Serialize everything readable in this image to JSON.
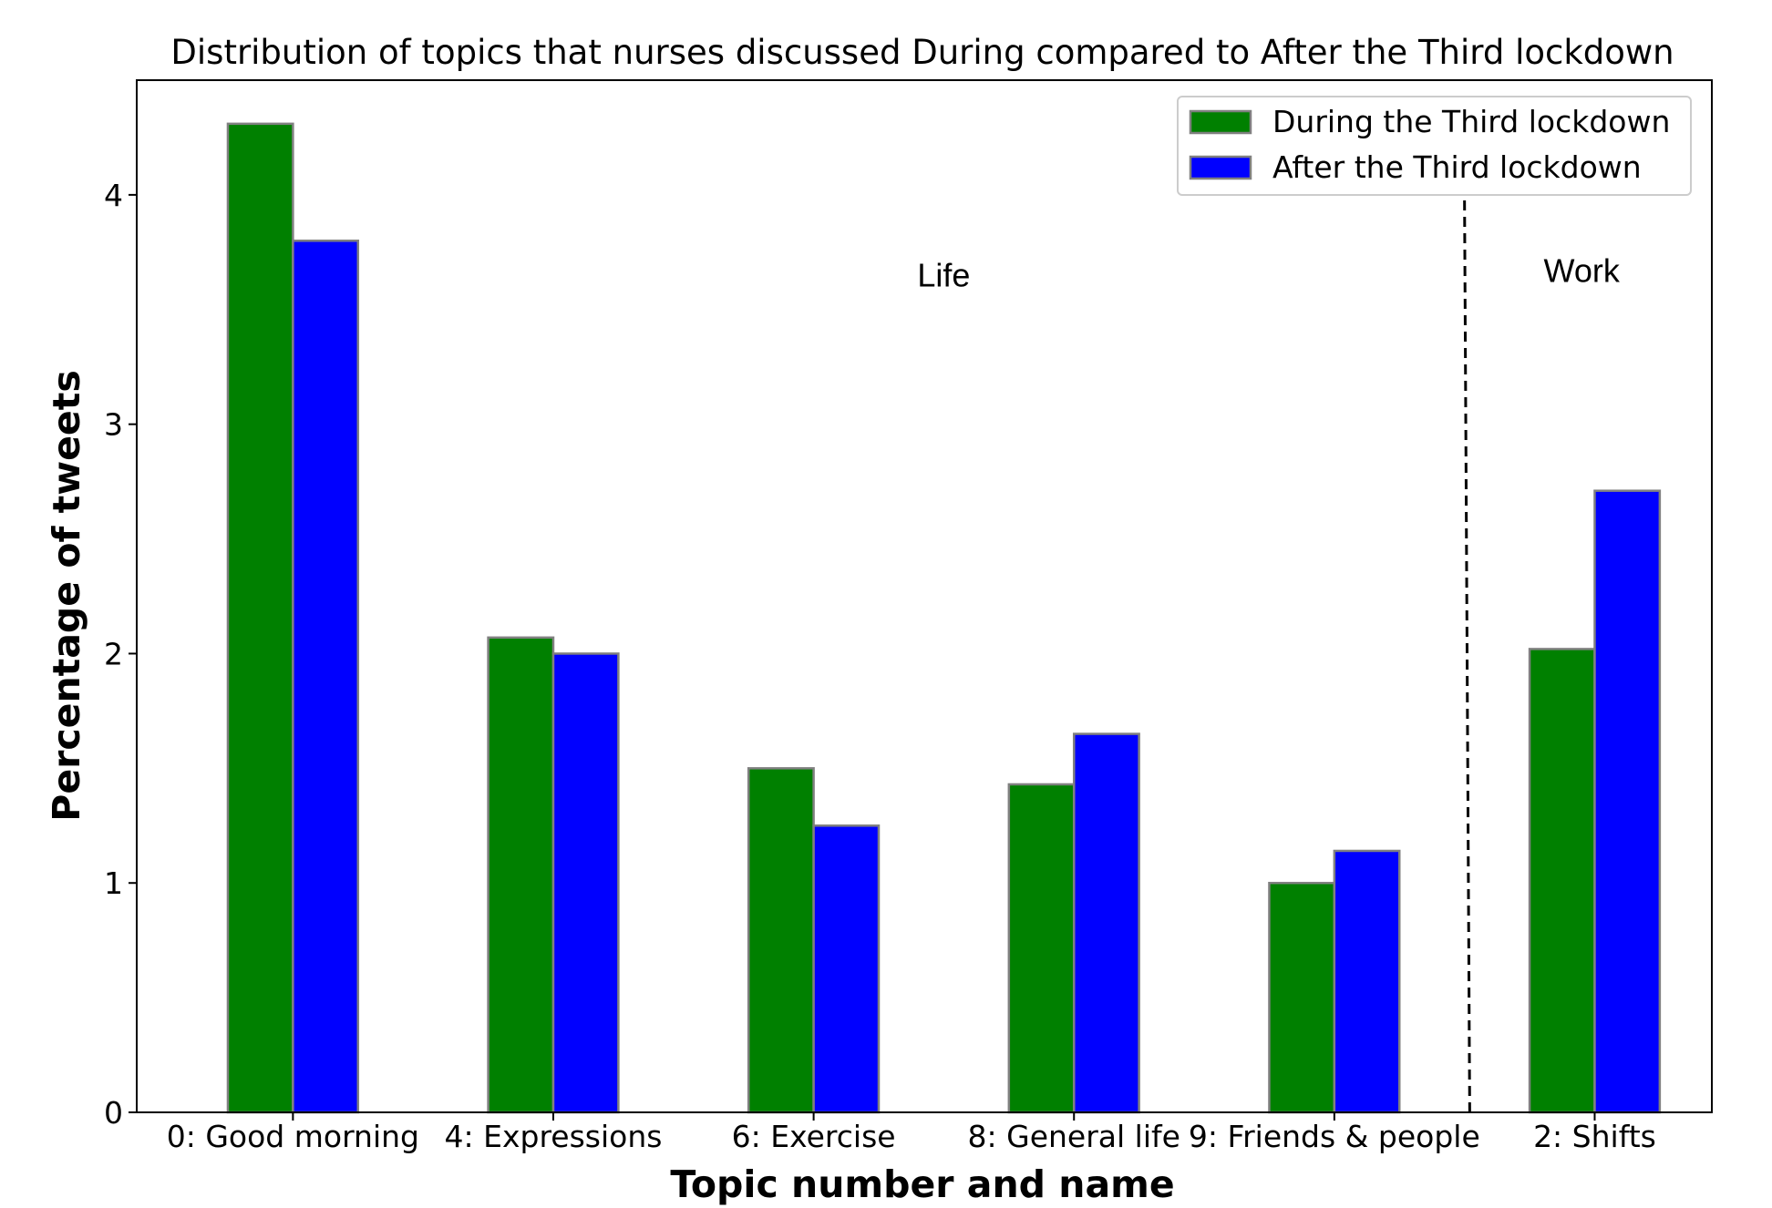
{
  "chart_data": {
    "type": "bar",
    "title": "Distribution of topics that nurses discussed During compared to After the Third lockdown",
    "xlabel": "Topic number and name",
    "ylabel": "Percentage of tweets",
    "categories": [
      "0: Good morning",
      "4: Expressions",
      "6: Exercise",
      "8: General life",
      "9: Friends & people",
      "2: Shifts"
    ],
    "series": [
      {
        "name": "During the Third lockdown",
        "color": "#008000",
        "values": [
          4.31,
          2.07,
          1.5,
          1.43,
          1.0,
          2.02
        ]
      },
      {
        "name": "After the Third lockdown",
        "color": "#0000ff",
        "values": [
          3.8,
          2.0,
          1.25,
          1.65,
          1.14,
          2.71
        ]
      }
    ],
    "ylim": [
      0,
      4.5
    ],
    "yticks": [
      0,
      1,
      2,
      3,
      4
    ],
    "grid": false,
    "legend_position": "top-right",
    "bar_edge_color": "#808080",
    "annotations": [
      {
        "text": "Life",
        "x": 2.5,
        "y": 3.6
      },
      {
        "text": "Work",
        "x": 4.95,
        "y": 3.62
      }
    ],
    "divider": {
      "style": "dashed",
      "x_top": 4.5,
      "x_bottom": 4.52
    }
  }
}
